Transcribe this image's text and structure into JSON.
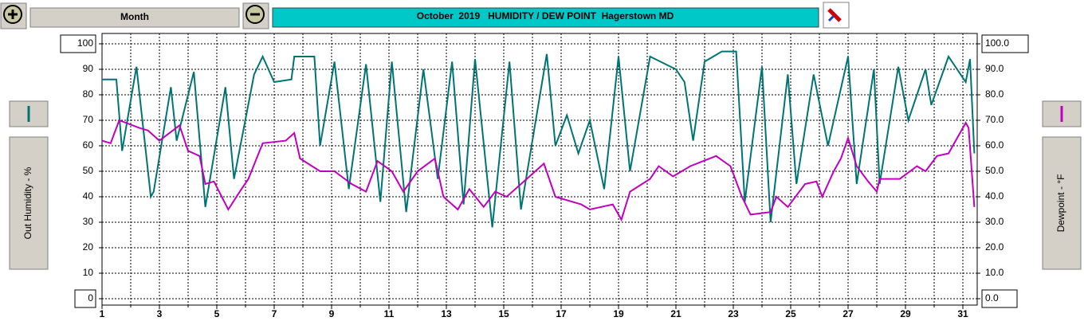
{
  "chart_data": {
    "type": "line",
    "title": "October  2019   HUMIDITY / DEW POINT  Hagerstown MD",
    "period": "Month",
    "xlim": [
      1,
      31.5
    ],
    "xticks": [
      1,
      3,
      5,
      7,
      9,
      11,
      13,
      15,
      17,
      19,
      21,
      23,
      25,
      27,
      29,
      31
    ],
    "xminorticks": [
      2,
      4,
      6,
      8,
      10,
      12,
      14,
      16,
      18,
      20,
      22,
      24,
      26,
      28,
      30
    ],
    "ylim": [
      0,
      100
    ],
    "yticks": [
      0,
      10,
      20,
      30,
      40,
      50,
      60,
      70,
      80,
      90,
      100
    ],
    "y2lim": [
      0,
      100
    ],
    "y2ticks": [
      {
        "value": 0,
        "label": "0.0"
      },
      {
        "value": 10,
        "label": "10.0"
      },
      {
        "value": 20,
        "label": "20.0"
      },
      {
        "value": 30,
        "label": "30.0"
      },
      {
        "value": 40,
        "label": "40.0"
      },
      {
        "value": 50,
        "label": "50.0"
      },
      {
        "value": 60,
        "label": "60.0"
      },
      {
        "value": 70,
        "label": "70.0"
      },
      {
        "value": 80,
        "label": "80.0"
      },
      {
        "value": 90,
        "label": "90.0"
      },
      {
        "value": 100,
        "label": "100.0"
      }
    ],
    "grid": true,
    "series": [
      {
        "name": "Out Humidity - %",
        "color": "#007474",
        "x": [
          1,
          1.5,
          1.7,
          2.2,
          2.7,
          2.8,
          3.4,
          3.6,
          4.2,
          4.6,
          5.3,
          5.6,
          6.3,
          6.6,
          7.0,
          7.6,
          7.7,
          8.4,
          8.6,
          9.1,
          9.6,
          10.2,
          10.7,
          11.1,
          11.6,
          12.2,
          12.7,
          13.2,
          13.6,
          14.0,
          14.6,
          15.2,
          15.6,
          16.5,
          16.8,
          17.2,
          17.6,
          18.0,
          18.5,
          19.0,
          19.4,
          20.1,
          21.0,
          21.3,
          21.6,
          22.0,
          22.6,
          23.1,
          23.4,
          24.0,
          24.3,
          24.9,
          25.2,
          25.8,
          26.3,
          27.0,
          27.3,
          27.9,
          28.1,
          28.75,
          29.1,
          29.7,
          29.9,
          30.5,
          31.1,
          31.25,
          31.4
        ],
        "values": [
          86,
          86,
          58,
          91,
          40,
          42,
          83,
          62,
          89,
          36,
          83,
          47,
          88,
          95,
          85,
          86,
          95,
          95,
          60,
          93,
          43,
          92,
          38,
          93,
          34,
          90,
          47,
          93,
          37,
          94,
          28,
          93,
          35,
          96,
          60,
          72,
          57,
          70,
          43,
          95,
          50,
          95,
          90,
          85,
          62,
          93,
          97,
          97,
          38,
          91,
          30,
          88,
          45,
          88,
          60,
          95,
          45,
          90,
          45,
          91,
          70,
          90,
          76,
          95,
          85,
          94,
          57
        ]
      },
      {
        "name": "Dewpoint - °F",
        "color": "#c000c0",
        "axis": "y2",
        "x": [
          1,
          1.3,
          1.6,
          2.3,
          2.6,
          3.0,
          3.7,
          4.0,
          4.4,
          4.6,
          4.9,
          5.4,
          5.8,
          6.1,
          6.6,
          7.4,
          7.7,
          7.9,
          8.6,
          9.1,
          9.7,
          10.2,
          10.6,
          11.1,
          11.5,
          12.0,
          12.6,
          12.9,
          13.4,
          13.8,
          14.3,
          14.7,
          15.1,
          15.8,
          16.4,
          16.8,
          17.7,
          18.0,
          18.8,
          19.1,
          19.4,
          20.1,
          20.4,
          20.9,
          21.5,
          22.4,
          22.9,
          23.3,
          23.6,
          24.3,
          24.5,
          24.9,
          25.5,
          25.9,
          26.1,
          26.5,
          26.75,
          27.0,
          27.3,
          27.7,
          28.0,
          28.1,
          28.8,
          29.4,
          29.7,
          30.1,
          30.5,
          31.1,
          31.2,
          31.4
        ],
        "values": [
          62,
          61,
          70,
          67,
          66,
          62,
          68,
          58,
          56,
          45,
          46,
          35,
          42,
          47,
          61,
          62,
          65,
          55,
          50,
          50,
          45,
          42,
          54,
          50,
          42,
          50,
          55,
          40,
          35,
          43,
          36,
          42,
          40,
          47,
          53,
          40,
          37,
          35,
          37,
          31,
          42,
          47,
          52,
          48,
          52,
          56,
          52,
          40,
          33,
          34,
          40,
          36,
          45,
          46,
          40,
          50,
          55,
          63,
          52,
          46,
          42,
          47,
          47,
          52,
          50,
          56,
          57,
          69,
          67,
          36
        ]
      }
    ]
  }
}
